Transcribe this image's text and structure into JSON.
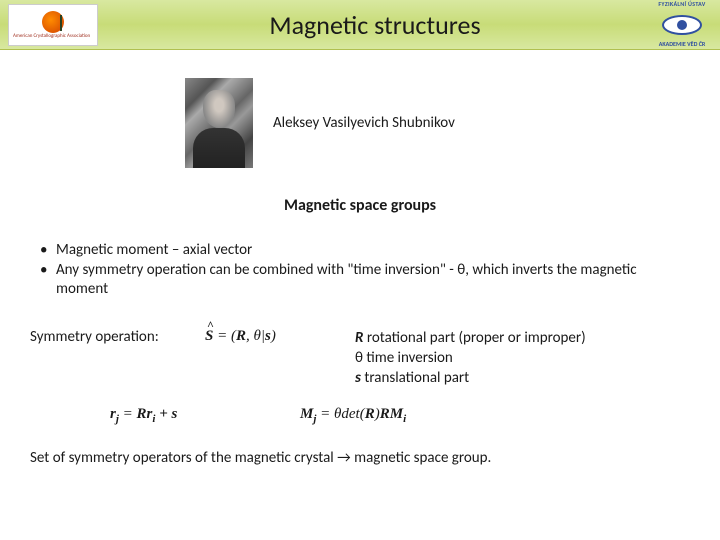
{
  "header": {
    "title": "Magnetic structures",
    "logo_left": {
      "label1": "ACA",
      "label2": "American Crystallographic Association"
    },
    "logo_right": {
      "arc_top": "FYZIKÁLNÍ ÚSTAV",
      "arc_bottom": "AKADEMIE VĚD ČR"
    }
  },
  "portrait": {
    "name": "Aleksey Vasilyevich Shubnikov"
  },
  "subtitle": "Magnetic space groups",
  "bullets": {
    "b1": "Magnetic moment – axial vector",
    "b2": "Any symmetry operation can be combined with \"time inversion\" - θ, which inverts the magnetic moment"
  },
  "equations": {
    "label": "Symmetry operation:",
    "shat": "S",
    "lhs_open": " = (",
    "R": "R",
    "comma": ", θ|",
    "s": "s",
    "close": ")",
    "def_R_sym": "R",
    "def_R": "   rotational part (proper or improper)",
    "def_theta": "θ   time inversion",
    "def_s_sym": "s",
    "def_s": "    translational part",
    "rj": "r",
    "rj_sub": "j",
    "eq1_mid": " = ",
    "Rr": "Rr",
    "ri_sub": "i",
    "plus_s": " + s",
    "Mj": "M",
    "Mj_sub": "j",
    "eq2_mid": " = θdet(",
    "R2": "R",
    "eq2_mid2": ")",
    "RM": "RM",
    "Mi_sub": "i"
  },
  "footer": "Set of symmetry operators of the magnetic crystal → magnetic space group.",
  "colors": {
    "header_gradient_top": "#d8e8a0",
    "header_gradient_mid": "#c8dc78",
    "text": "#1a1a1a",
    "logo_blue": "#3050a0"
  }
}
